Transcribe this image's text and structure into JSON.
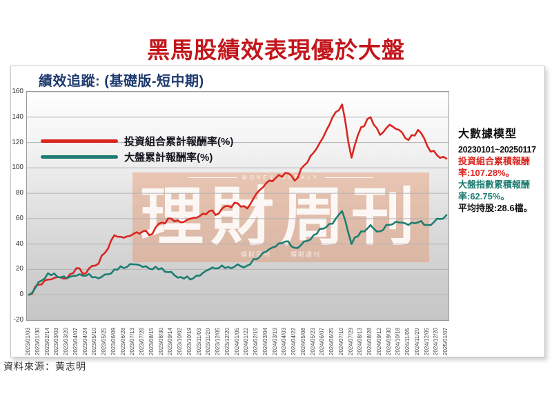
{
  "page": {
    "title": "黑馬股績效表現優於大盤",
    "source": "資料來源：黃志明"
  },
  "panel": {
    "chart_title": "績效追蹤: (基礎版-短中期)"
  },
  "watermark": {
    "top": "MONEY WEEKLY",
    "main": "理財周刊",
    "bottom_left": "理財周刊",
    "bottom_right": "理財週刊"
  },
  "info": {
    "heading": "大數據模型",
    "period": "20230101~20250117",
    "line1": "投資組合累積報酬率:107.28%。",
    "line2": "大盤指數累積報酬率:62.75%。",
    "line3": "平均持股:28.6檔。"
  },
  "colors": {
    "title_red": "#c3161c",
    "chart_title_navy": "#1e3a6e",
    "portfolio_line": "#d9261f",
    "market_line": "#1d7d72",
    "watermark_salmon": "#e48e64",
    "plot_bg_top": "#ffffff",
    "plot_bg_bottom": "#c6c6c6"
  },
  "chart_data": {
    "type": "line",
    "title": "績效追蹤: (基礎版-短中期)",
    "xlabel": "",
    "ylabel": "",
    "ylim": [
      -20,
      160
    ],
    "y_ticks": [
      160,
      140,
      120,
      100,
      80,
      60,
      40,
      20,
      0,
      -20
    ],
    "grid": true,
    "legend_position": "upper-left",
    "categories": [
      "2023/01/03",
      "2023/01/30",
      "2023/02/14",
      "2023/03/03",
      "2023/03/20",
      "2023/04/07",
      "2023/04/24",
      "2023/05/10",
      "2023/05/25",
      "2023/06/09",
      "2023/06/28",
      "2023/07/13",
      "2023/07/28",
      "2023/08/15",
      "2023/08/30",
      "2023/09/14",
      "2023/10/02",
      "2023/10/19",
      "2023/11/03",
      "2023/11/20",
      "2023/12/05",
      "2023/12/20",
      "2024/01/05",
      "2024/01/22",
      "2024/02/15",
      "2024/03/04",
      "2024/03/19",
      "2024/04/03",
      "2024/04/22",
      "2024/05/08",
      "2024/05/23",
      "2024/06/07",
      "2024/06/25",
      "2024/07/10",
      "2024/07/29",
      "2024/08/13",
      "2024/08/28",
      "2024/09/12",
      "2024/09/30",
      "2024/10/18",
      "2024/11/05",
      "2024/11/20",
      "2024/12/05",
      "2024/12/20",
      "2025/01/07"
    ],
    "series": [
      {
        "name": "投資組合累計報酬率(%)",
        "color": "#d9261f",
        "final_value": 107.28,
        "values": [
          0,
          8,
          12,
          14,
          13,
          21,
          17,
          23,
          33,
          47,
          45,
          48,
          50,
          48,
          57,
          60,
          57,
          60,
          62,
          66,
          64,
          70,
          72,
          68,
          80,
          88,
          92,
          96,
          90,
          102,
          112,
          124,
          140,
          150,
          108,
          132,
          140,
          126,
          134,
          130,
          122,
          130,
          117,
          110,
          107.28
        ]
      },
      {
        "name": "大盤累計報酬率(%)",
        "color": "#1d7d72",
        "final_value": 62.75,
        "values": [
          0,
          10,
          17,
          14,
          13,
          15,
          15,
          14,
          16,
          20,
          21,
          24,
          22,
          20,
          21,
          18,
          14,
          12,
          15,
          20,
          21,
          22,
          24,
          23,
          28,
          34,
          38,
          42,
          37,
          42,
          47,
          52,
          56,
          66,
          40,
          50,
          55,
          50,
          55,
          57,
          55,
          57,
          55,
          60,
          62.75
        ]
      }
    ]
  }
}
